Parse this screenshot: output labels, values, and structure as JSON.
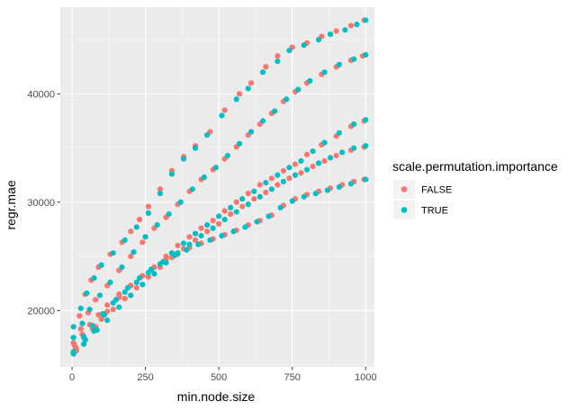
{
  "chart_data": {
    "type": "scatter",
    "title": "",
    "xlabel": "min.node.size",
    "ylabel": "regr.mae",
    "xlim": [
      -40,
      1030
    ],
    "ylim": [
      14800,
      48000
    ],
    "x_ticks": [
      0,
      250,
      500,
      750,
      1000
    ],
    "x_tick_labels": [
      "0",
      "250",
      "500",
      "750",
      "1000"
    ],
    "y_ticks": [
      20000,
      30000,
      40000
    ],
    "y_tick_labels": [
      "20000",
      "30000",
      "40000"
    ],
    "grid": true,
    "legend": {
      "position": "right",
      "title": "scale.permutation.importance",
      "entries": [
        {
          "label": "FALSE",
          "color": "#F8766D"
        },
        {
          "label": "TRUE",
          "color": "#00BFC4"
        }
      ]
    },
    "colors": {
      "FALSE": "#F8766D",
      "TRUE": "#00BFC4",
      "panel": "#EBEBEB",
      "grid_major": "#FFFFFF"
    },
    "series": [
      {
        "name": "FALSE",
        "color": "#F8766D",
        "points": [
          [
            5,
            17000
          ],
          [
            25,
            19500
          ],
          [
            45,
            21500
          ],
          [
            65,
            22800
          ],
          [
            90,
            24000
          ],
          [
            130,
            25200
          ],
          [
            170,
            26300
          ],
          [
            200,
            27300
          ],
          [
            230,
            28400
          ],
          [
            260,
            29600
          ],
          [
            300,
            31200
          ],
          [
            340,
            32900
          ],
          [
            380,
            34200
          ],
          [
            420,
            35200
          ],
          [
            470,
            36500
          ],
          [
            520,
            38500
          ],
          [
            570,
            40000
          ],
          [
            610,
            41000
          ],
          [
            660,
            42500
          ],
          [
            700,
            43500
          ],
          [
            750,
            44300
          ],
          [
            800,
            44700
          ],
          [
            850,
            45300
          ],
          [
            900,
            45800
          ],
          [
            950,
            46300
          ],
          [
            995,
            46800
          ],
          [
            8,
            16800
          ],
          [
            30,
            18300
          ],
          [
            55,
            19800
          ],
          [
            80,
            21000
          ],
          [
            120,
            22300
          ],
          [
            160,
            23700
          ],
          [
            200,
            25000
          ],
          [
            240,
            26300
          ],
          [
            280,
            27600
          ],
          [
            320,
            28600
          ],
          [
            360,
            29800
          ],
          [
            400,
            31000
          ],
          [
            440,
            32100
          ],
          [
            480,
            33000
          ],
          [
            520,
            34000
          ],
          [
            560,
            35100
          ],
          [
            600,
            36200
          ],
          [
            640,
            37200
          ],
          [
            680,
            38200
          ],
          [
            720,
            39300
          ],
          [
            760,
            40200
          ],
          [
            800,
            41000
          ],
          [
            850,
            41800
          ],
          [
            900,
            42500
          ],
          [
            950,
            43100
          ],
          [
            990,
            43500
          ],
          [
            10,
            16700
          ],
          [
            35,
            17800
          ],
          [
            60,
            18700
          ],
          [
            90,
            19600
          ],
          [
            120,
            20500
          ],
          [
            160,
            21500
          ],
          [
            200,
            22300
          ],
          [
            240,
            23200
          ],
          [
            280,
            24000
          ],
          [
            320,
            25000
          ],
          [
            360,
            26000
          ],
          [
            400,
            26800
          ],
          [
            440,
            27600
          ],
          [
            480,
            28300
          ],
          [
            520,
            29200
          ],
          [
            560,
            30000
          ],
          [
            600,
            30800
          ],
          [
            640,
            31600
          ],
          [
            680,
            32200
          ],
          [
            720,
            32900
          ],
          [
            760,
            33500
          ],
          [
            800,
            34400
          ],
          [
            850,
            35300
          ],
          [
            900,
            36100
          ],
          [
            950,
            37000
          ],
          [
            995,
            37500
          ],
          [
            12,
            16600
          ],
          [
            40,
            17500
          ],
          [
            70,
            18300
          ],
          [
            100,
            19200
          ],
          [
            140,
            20100
          ],
          [
            180,
            21100
          ],
          [
            220,
            22100
          ],
          [
            260,
            23100
          ],
          [
            300,
            24000
          ],
          [
            340,
            24900
          ],
          [
            380,
            25700
          ],
          [
            420,
            26500
          ],
          [
            460,
            27300
          ],
          [
            500,
            28000
          ],
          [
            540,
            28900
          ],
          [
            580,
            29600
          ],
          [
            620,
            30300
          ],
          [
            660,
            30900
          ],
          [
            700,
            31600
          ],
          [
            740,
            32200
          ],
          [
            780,
            32700
          ],
          [
            820,
            33300
          ],
          [
            860,
            33800
          ],
          [
            900,
            34300
          ],
          [
            950,
            34800
          ],
          [
            995,
            35100
          ],
          [
            15,
            16300
          ],
          [
            45,
            17300
          ],
          [
            80,
            18500
          ],
          [
            120,
            19900
          ],
          [
            160,
            21200
          ],
          [
            200,
            22300
          ],
          [
            240,
            23200
          ],
          [
            280,
            24000
          ],
          [
            320,
            24700
          ],
          [
            360,
            25200
          ],
          [
            400,
            25800
          ],
          [
            440,
            26200
          ],
          [
            480,
            26600
          ],
          [
            520,
            27000
          ],
          [
            560,
            27400
          ],
          [
            600,
            27900
          ],
          [
            640,
            28300
          ],
          [
            680,
            28800
          ],
          [
            720,
            29700
          ],
          [
            760,
            30300
          ],
          [
            800,
            30700
          ],
          [
            840,
            31000
          ],
          [
            880,
            31300
          ],
          [
            920,
            31600
          ],
          [
            960,
            31900
          ],
          [
            995,
            32100
          ]
        ]
      },
      {
        "name": "TRUE",
        "color": "#00BFC4",
        "points": [
          [
            5,
            18500
          ],
          [
            30,
            20200
          ],
          [
            50,
            21600
          ],
          [
            75,
            23000
          ],
          [
            100,
            24200
          ],
          [
            140,
            25300
          ],
          [
            180,
            26500
          ],
          [
            220,
            27700
          ],
          [
            260,
            29000
          ],
          [
            300,
            30800
          ],
          [
            340,
            32600
          ],
          [
            380,
            34000
          ],
          [
            420,
            35000
          ],
          [
            460,
            36200
          ],
          [
            510,
            38000
          ],
          [
            560,
            39500
          ],
          [
            600,
            40500
          ],
          [
            650,
            42000
          ],
          [
            700,
            43000
          ],
          [
            740,
            44000
          ],
          [
            790,
            44500
          ],
          [
            840,
            45000
          ],
          [
            880,
            45500
          ],
          [
            930,
            45900
          ],
          [
            970,
            46400
          ],
          [
            1000,
            46800
          ],
          [
            5,
            17500
          ],
          [
            35,
            18800
          ],
          [
            60,
            20100
          ],
          [
            95,
            21400
          ],
          [
            130,
            22600
          ],
          [
            170,
            24000
          ],
          [
            210,
            25400
          ],
          [
            250,
            26800
          ],
          [
            290,
            27900
          ],
          [
            330,
            28900
          ],
          [
            370,
            30000
          ],
          [
            410,
            31200
          ],
          [
            450,
            32300
          ],
          [
            490,
            33200
          ],
          [
            530,
            34300
          ],
          [
            570,
            35400
          ],
          [
            610,
            36500
          ],
          [
            650,
            37500
          ],
          [
            690,
            38400
          ],
          [
            730,
            39500
          ],
          [
            770,
            40400
          ],
          [
            810,
            41200
          ],
          [
            860,
            42000
          ],
          [
            910,
            42700
          ],
          [
            960,
            43200
          ],
          [
            1000,
            43600
          ],
          [
            5,
            16200
          ],
          [
            40,
            17600
          ],
          [
            70,
            18600
          ],
          [
            105,
            19700
          ],
          [
            140,
            20700
          ],
          [
            180,
            21700
          ],
          [
            220,
            22600
          ],
          [
            260,
            23500
          ],
          [
            300,
            24300
          ],
          [
            340,
            25300
          ],
          [
            380,
            26200
          ],
          [
            420,
            27100
          ],
          [
            460,
            27900
          ],
          [
            500,
            28700
          ],
          [
            540,
            29500
          ],
          [
            580,
            30300
          ],
          [
            620,
            31000
          ],
          [
            660,
            31800
          ],
          [
            700,
            32500
          ],
          [
            740,
            33200
          ],
          [
            780,
            33800
          ],
          [
            820,
            34700
          ],
          [
            860,
            35500
          ],
          [
            910,
            36400
          ],
          [
            960,
            37200
          ],
          [
            1000,
            37600
          ],
          [
            5,
            16000
          ],
          [
            45,
            17300
          ],
          [
            85,
            18200
          ],
          [
            120,
            19100
          ],
          [
            160,
            20300
          ],
          [
            200,
            21400
          ],
          [
            240,
            22400
          ],
          [
            280,
            23400
          ],
          [
            320,
            24400
          ],
          [
            360,
            25300
          ],
          [
            400,
            26100
          ],
          [
            440,
            26900
          ],
          [
            480,
            27600
          ],
          [
            520,
            28400
          ],
          [
            560,
            29100
          ],
          [
            600,
            29800
          ],
          [
            640,
            30500
          ],
          [
            680,
            31200
          ],
          [
            720,
            31900
          ],
          [
            760,
            32500
          ],
          [
            800,
            33000
          ],
          [
            840,
            33600
          ],
          [
            880,
            34100
          ],
          [
            920,
            34600
          ],
          [
            960,
            35000
          ],
          [
            1000,
            35200
          ],
          [
            5,
            16100
          ],
          [
            40,
            16900
          ],
          [
            75,
            18100
          ],
          [
            110,
            19600
          ],
          [
            150,
            21000
          ],
          [
            190,
            22100
          ],
          [
            230,
            23000
          ],
          [
            270,
            23800
          ],
          [
            310,
            24500
          ],
          [
            350,
            25100
          ],
          [
            390,
            25600
          ],
          [
            430,
            26100
          ],
          [
            470,
            26500
          ],
          [
            510,
            26900
          ],
          [
            550,
            27300
          ],
          [
            590,
            27700
          ],
          [
            630,
            28200
          ],
          [
            670,
            28700
          ],
          [
            710,
            29500
          ],
          [
            750,
            30100
          ],
          [
            790,
            30500
          ],
          [
            830,
            30800
          ],
          [
            870,
            31100
          ],
          [
            910,
            31400
          ],
          [
            950,
            31700
          ],
          [
            1000,
            32100
          ]
        ]
      }
    ]
  }
}
